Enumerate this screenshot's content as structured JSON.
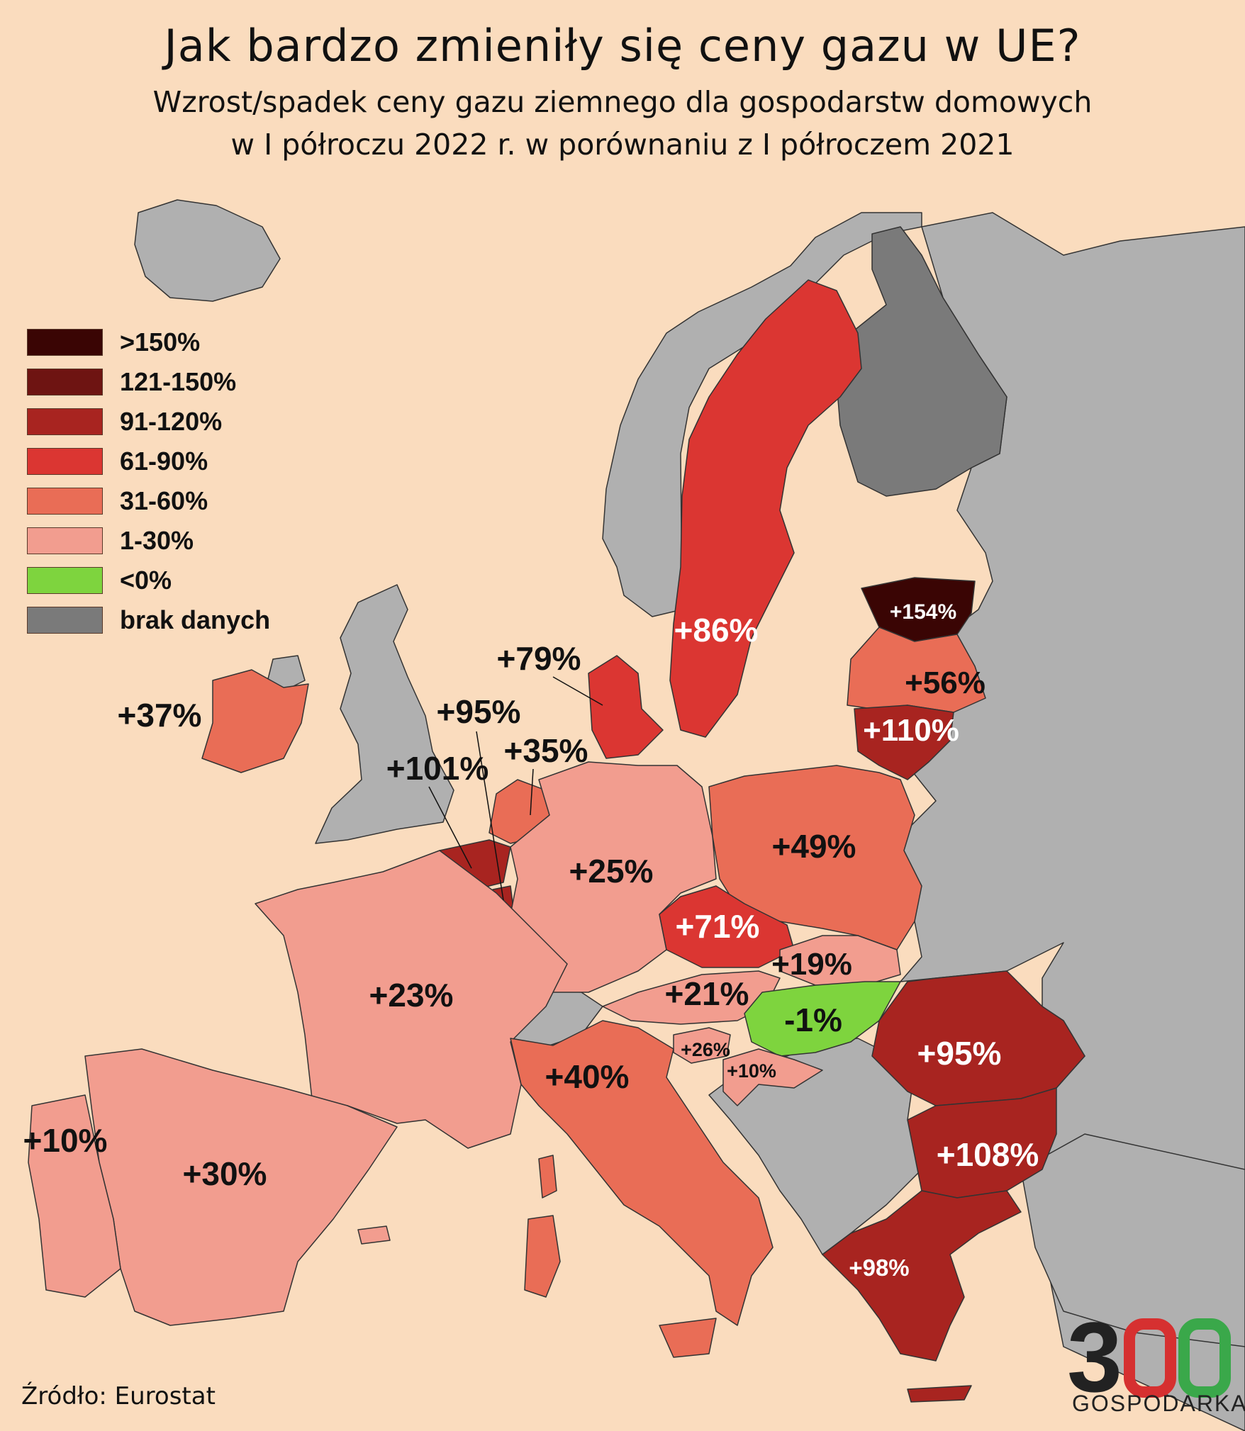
{
  "title": "Jak bardzo zmieniły się ceny gazu w UE?",
  "subtitle_line1": "Wzrost/spadek ceny gazu ziemnego dla gospodarstw domowych",
  "subtitle_line2": "w I półroczu 2022 r. w porównaniu z I półroczem 2021",
  "legend": [
    {
      "label": ">150%",
      "color": "#3a0504"
    },
    {
      "label": "121-150%",
      "color": "#6e1412"
    },
    {
      "label": "91-120%",
      "color": "#a82420"
    },
    {
      "label": "61-90%",
      "color": "#db3632"
    },
    {
      "label": "31-60%",
      "color": "#e96d56"
    },
    {
      "label": "1-30%",
      "color": "#f29d8f"
    },
    {
      "label": "<0%",
      "color": "#7ed43e"
    },
    {
      "label": "brak danych",
      "color": "#7a7a7a"
    }
  ],
  "regions": {
    "sweden": "+86%",
    "estonia": "+154%",
    "latvia": "+56%",
    "lithuania": "+110%",
    "denmark": "+79%",
    "ireland": "+37%",
    "belgium": "+101%",
    "luxembourg": "+95%",
    "netherlands": "+35%",
    "germany": "+25%",
    "poland": "+49%",
    "czechia": "+71%",
    "slovakia": "+19%",
    "austria": "+21%",
    "hungary": "-1%",
    "romania": "+95%",
    "bulgaria": "+108%",
    "slovenia": "+26%",
    "croatia": "+10%",
    "italy": "+40%",
    "france": "+23%",
    "portugal": "+10%",
    "spain": "+30%",
    "greece": "+98%"
  },
  "colors": {
    "sea": "#fadcbe",
    "non_eu": "#b0b0b0",
    "no_data": "#7a7a7a",
    "border": "#333333"
  },
  "source": "Źródło: Eurostat",
  "logo": {
    "number": "300",
    "text": "GOSPODARKA"
  }
}
